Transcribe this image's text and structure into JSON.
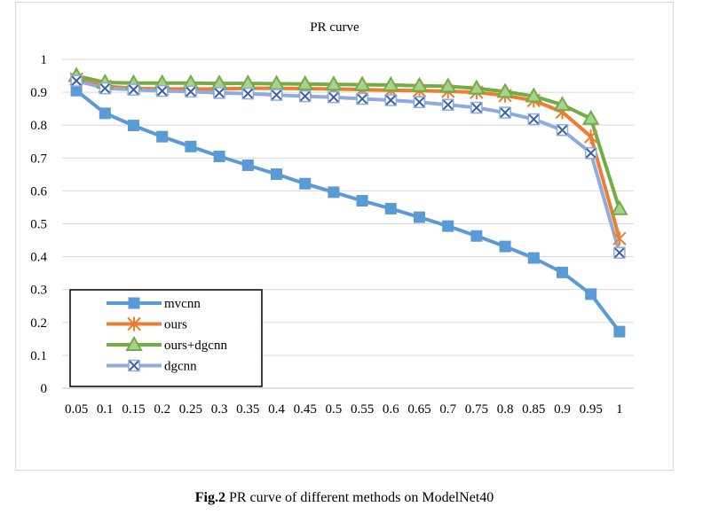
{
  "chart_data": {
    "type": "line",
    "title": "PR curve",
    "xlabel": "",
    "ylabel": "",
    "categories": [
      "0.05",
      "0.1",
      "0.15",
      "0.2",
      "0.25",
      "0.3",
      "0.35",
      "0.4",
      "0.45",
      "0.5",
      "0.55",
      "0.6",
      "0.65",
      "0.7",
      "0.75",
      "0.8",
      "0.85",
      "0.9",
      "0.95",
      "1"
    ],
    "ylim": [
      0,
      1
    ],
    "yticks": [
      "0",
      "0.1",
      "0.2",
      "0.3",
      "0.4",
      "0.5",
      "0.6",
      "0.7",
      "0.8",
      "0.9",
      "1"
    ],
    "grid": true,
    "legend_position": "lower-left",
    "series": [
      {
        "name": "mvcnn",
        "color": "#5b9bd5",
        "marker": "square",
        "values": [
          0.905,
          0.836,
          0.799,
          0.765,
          0.735,
          0.705,
          0.678,
          0.651,
          0.622,
          0.596,
          0.57,
          0.546,
          0.52,
          0.493,
          0.463,
          0.431,
          0.396,
          0.352,
          0.286,
          0.172
        ]
      },
      {
        "name": "ours",
        "color": "#ed7d31",
        "marker": "star",
        "values": [
          0.94,
          0.918,
          0.912,
          0.91,
          0.91,
          0.91,
          0.912,
          0.912,
          0.911,
          0.91,
          0.908,
          0.906,
          0.905,
          0.903,
          0.9,
          0.89,
          0.875,
          0.84,
          0.765,
          0.455
        ]
      },
      {
        "name": "ours+dgcnn",
        "color": "#70ad47",
        "marker": "triangle",
        "values": [
          0.95,
          0.93,
          0.928,
          0.928,
          0.928,
          0.927,
          0.927,
          0.926,
          0.925,
          0.924,
          0.923,
          0.922,
          0.92,
          0.918,
          0.912,
          0.902,
          0.888,
          0.862,
          0.82,
          0.545
        ]
      },
      {
        "name": "dgcnn",
        "color": "#8faadc",
        "marker": "x",
        "values": [
          0.935,
          0.912,
          0.908,
          0.904,
          0.902,
          0.898,
          0.896,
          0.892,
          0.888,
          0.885,
          0.88,
          0.876,
          0.87,
          0.862,
          0.853,
          0.838,
          0.818,
          0.785,
          0.715,
          0.412
        ]
      }
    ]
  },
  "caption": {
    "label": "Fig.2",
    "text": " PR curve of different methods on ModelNet40"
  }
}
